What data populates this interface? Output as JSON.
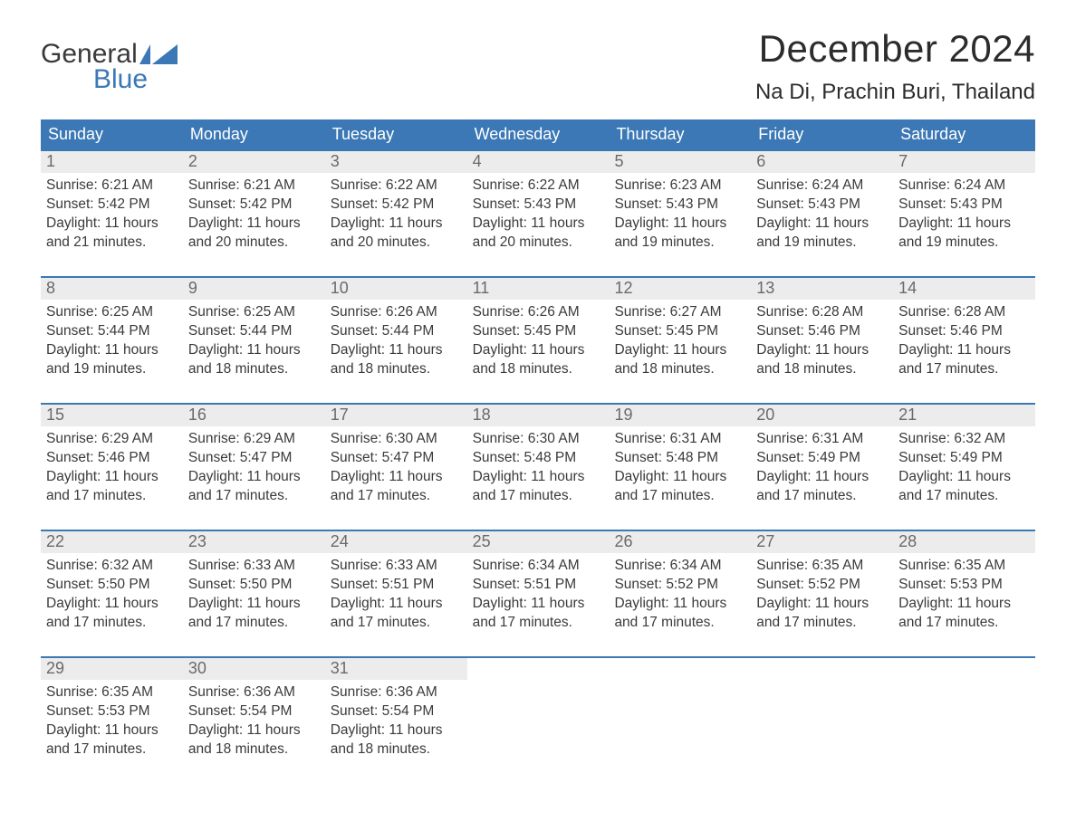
{
  "logo": {
    "word1": "General",
    "word2": "Blue",
    "text_color": "#3a3a3a",
    "accent_color": "#3b78b5"
  },
  "title": "December 2024",
  "location": "Na Di, Prachin Buri, Thailand",
  "colors": {
    "header_bg": "#3b78b5",
    "header_text": "#ffffff",
    "daynum_bg": "#ececec",
    "daynum_text": "#6a6a6a",
    "body_text": "#3a3a3a",
    "row_border": "#3b78b5",
    "page_bg": "#ffffff"
  },
  "typography": {
    "title_fontsize": 42,
    "location_fontsize": 24,
    "weekday_fontsize": 18,
    "daynum_fontsize": 18,
    "content_fontsize": 15.5,
    "font_family": "Arial"
  },
  "weekdays": [
    "Sunday",
    "Monday",
    "Tuesday",
    "Wednesday",
    "Thursday",
    "Friday",
    "Saturday"
  ],
  "weeks": [
    [
      {
        "n": "1",
        "sunrise": "6:21 AM",
        "sunset": "5:42 PM",
        "dl1": "11 hours",
        "dl2": "and 21 minutes."
      },
      {
        "n": "2",
        "sunrise": "6:21 AM",
        "sunset": "5:42 PM",
        "dl1": "11 hours",
        "dl2": "and 20 minutes."
      },
      {
        "n": "3",
        "sunrise": "6:22 AM",
        "sunset": "5:42 PM",
        "dl1": "11 hours",
        "dl2": "and 20 minutes."
      },
      {
        "n": "4",
        "sunrise": "6:22 AM",
        "sunset": "5:43 PM",
        "dl1": "11 hours",
        "dl2": "and 20 minutes."
      },
      {
        "n": "5",
        "sunrise": "6:23 AM",
        "sunset": "5:43 PM",
        "dl1": "11 hours",
        "dl2": "and 19 minutes."
      },
      {
        "n": "6",
        "sunrise": "6:24 AM",
        "sunset": "5:43 PM",
        "dl1": "11 hours",
        "dl2": "and 19 minutes."
      },
      {
        "n": "7",
        "sunrise": "6:24 AM",
        "sunset": "5:43 PM",
        "dl1": "11 hours",
        "dl2": "and 19 minutes."
      }
    ],
    [
      {
        "n": "8",
        "sunrise": "6:25 AM",
        "sunset": "5:44 PM",
        "dl1": "11 hours",
        "dl2": "and 19 minutes."
      },
      {
        "n": "9",
        "sunrise": "6:25 AM",
        "sunset": "5:44 PM",
        "dl1": "11 hours",
        "dl2": "and 18 minutes."
      },
      {
        "n": "10",
        "sunrise": "6:26 AM",
        "sunset": "5:44 PM",
        "dl1": "11 hours",
        "dl2": "and 18 minutes."
      },
      {
        "n": "11",
        "sunrise": "6:26 AM",
        "sunset": "5:45 PM",
        "dl1": "11 hours",
        "dl2": "and 18 minutes."
      },
      {
        "n": "12",
        "sunrise": "6:27 AM",
        "sunset": "5:45 PM",
        "dl1": "11 hours",
        "dl2": "and 18 minutes."
      },
      {
        "n": "13",
        "sunrise": "6:28 AM",
        "sunset": "5:46 PM",
        "dl1": "11 hours",
        "dl2": "and 18 minutes."
      },
      {
        "n": "14",
        "sunrise": "6:28 AM",
        "sunset": "5:46 PM",
        "dl1": "11 hours",
        "dl2": "and 17 minutes."
      }
    ],
    [
      {
        "n": "15",
        "sunrise": "6:29 AM",
        "sunset": "5:46 PM",
        "dl1": "11 hours",
        "dl2": "and 17 minutes."
      },
      {
        "n": "16",
        "sunrise": "6:29 AM",
        "sunset": "5:47 PM",
        "dl1": "11 hours",
        "dl2": "and 17 minutes."
      },
      {
        "n": "17",
        "sunrise": "6:30 AM",
        "sunset": "5:47 PM",
        "dl1": "11 hours",
        "dl2": "and 17 minutes."
      },
      {
        "n": "18",
        "sunrise": "6:30 AM",
        "sunset": "5:48 PM",
        "dl1": "11 hours",
        "dl2": "and 17 minutes."
      },
      {
        "n": "19",
        "sunrise": "6:31 AM",
        "sunset": "5:48 PM",
        "dl1": "11 hours",
        "dl2": "and 17 minutes."
      },
      {
        "n": "20",
        "sunrise": "6:31 AM",
        "sunset": "5:49 PM",
        "dl1": "11 hours",
        "dl2": "and 17 minutes."
      },
      {
        "n": "21",
        "sunrise": "6:32 AM",
        "sunset": "5:49 PM",
        "dl1": "11 hours",
        "dl2": "and 17 minutes."
      }
    ],
    [
      {
        "n": "22",
        "sunrise": "6:32 AM",
        "sunset": "5:50 PM",
        "dl1": "11 hours",
        "dl2": "and 17 minutes."
      },
      {
        "n": "23",
        "sunrise": "6:33 AM",
        "sunset": "5:50 PM",
        "dl1": "11 hours",
        "dl2": "and 17 minutes."
      },
      {
        "n": "24",
        "sunrise": "6:33 AM",
        "sunset": "5:51 PM",
        "dl1": "11 hours",
        "dl2": "and 17 minutes."
      },
      {
        "n": "25",
        "sunrise": "6:34 AM",
        "sunset": "5:51 PM",
        "dl1": "11 hours",
        "dl2": "and 17 minutes."
      },
      {
        "n": "26",
        "sunrise": "6:34 AM",
        "sunset": "5:52 PM",
        "dl1": "11 hours",
        "dl2": "and 17 minutes."
      },
      {
        "n": "27",
        "sunrise": "6:35 AM",
        "sunset": "5:52 PM",
        "dl1": "11 hours",
        "dl2": "and 17 minutes."
      },
      {
        "n": "28",
        "sunrise": "6:35 AM",
        "sunset": "5:53 PM",
        "dl1": "11 hours",
        "dl2": "and 17 minutes."
      }
    ],
    [
      {
        "n": "29",
        "sunrise": "6:35 AM",
        "sunset": "5:53 PM",
        "dl1": "11 hours",
        "dl2": "and 17 minutes."
      },
      {
        "n": "30",
        "sunrise": "6:36 AM",
        "sunset": "5:54 PM",
        "dl1": "11 hours",
        "dl2": "and 18 minutes."
      },
      {
        "n": "31",
        "sunrise": "6:36 AM",
        "sunset": "5:54 PM",
        "dl1": "11 hours",
        "dl2": "and 18 minutes."
      },
      {
        "empty": true
      },
      {
        "empty": true
      },
      {
        "empty": true
      },
      {
        "empty": true
      }
    ]
  ],
  "labels": {
    "sunrise_prefix": "Sunrise: ",
    "sunset_prefix": "Sunset: ",
    "daylight_prefix": "Daylight: "
  }
}
